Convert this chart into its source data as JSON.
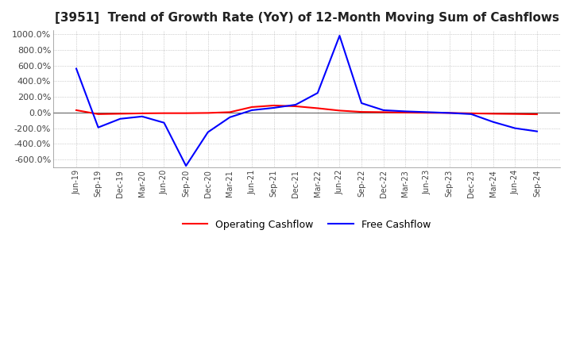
{
  "title": "[3951]  Trend of Growth Rate (YoY) of 12-Month Moving Sum of Cashflows",
  "title_fontsize": 11,
  "background_color": "#ffffff",
  "plot_bg_color": "#ffffff",
  "grid_color": "#aaaaaa",
  "ylim": [
    -700,
    1050
  ],
  "yticks": [
    -600,
    -400,
    -200,
    0,
    200,
    400,
    600,
    800,
    1000
  ],
  "x_labels": [
    "Jun-19",
    "Sep-19",
    "Dec-19",
    "Mar-20",
    "Jun-20",
    "Sep-20",
    "Dec-20",
    "Mar-21",
    "Jun-21",
    "Sep-21",
    "Dec-21",
    "Mar-22",
    "Jun-22",
    "Sep-22",
    "Dec-22",
    "Mar-23",
    "Jun-23",
    "Sep-23",
    "Dec-23",
    "Mar-24",
    "Jun-24",
    "Sep-24"
  ],
  "operating_cashflow": [
    30,
    -20,
    -15,
    -10,
    -8,
    -8,
    -5,
    5,
    70,
    90,
    80,
    55,
    25,
    8,
    5,
    0,
    -3,
    -5,
    -10,
    -15,
    -18,
    -22
  ],
  "free_cashflow": [
    560,
    -190,
    -80,
    -50,
    -130,
    -680,
    -250,
    -60,
    30,
    60,
    100,
    250,
    980,
    120,
    30,
    15,
    5,
    -5,
    -20,
    -120,
    -200,
    -240
  ],
  "op_color": "#ff0000",
  "free_color": "#0000ff",
  "legend_labels": [
    "Operating Cashflow",
    "Free Cashflow"
  ],
  "line_width": 1.5
}
